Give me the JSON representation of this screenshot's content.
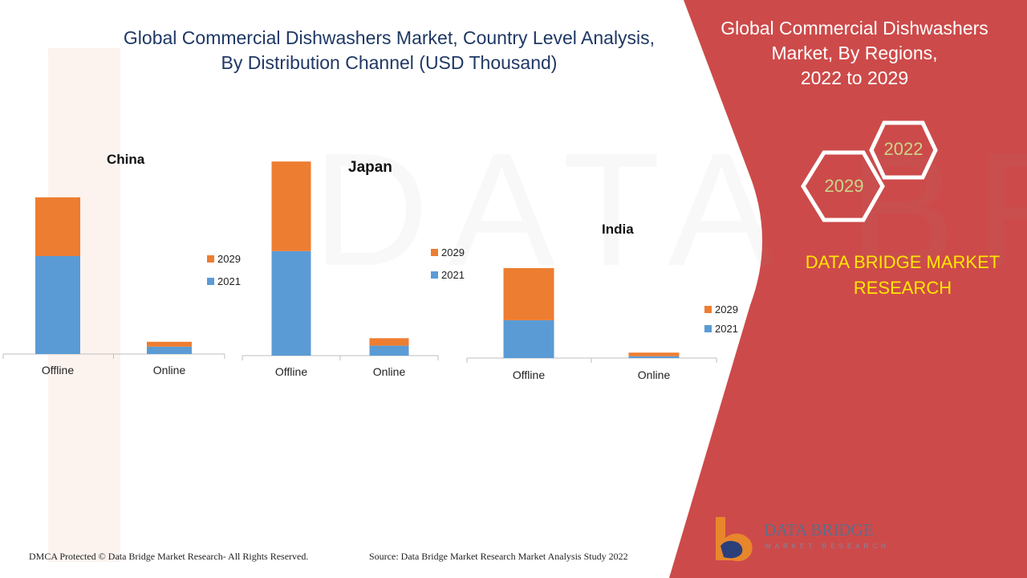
{
  "title_line1": "Global Commercial Dishwashers Market, Country Level Analysis,",
  "title_line2": "By Distribution Channel (USD Thousand)",
  "panel": {
    "title_line1": "Global Commercial Dishwashers",
    "title_line2": "Market, By Regions,",
    "title_line3": "2022 to 2029",
    "hex_year_1": "2022",
    "hex_year_2": "2029",
    "brand_line1": "DATA BRIDGE MARKET",
    "brand_line2": "RESEARCH"
  },
  "footer": {
    "copyright": "DMCA Protected © Data Bridge Market Research- All Rights Reserved.",
    "source": "Source: Data Bridge Market Research Market Analysis Study 2022"
  },
  "logo": {
    "name": "DATA BRIDGE",
    "subtitle": "MARKET RESEARCH"
  },
  "colors": {
    "series_2021": "#5b9bd5",
    "series_2029": "#ed7d31",
    "panel_red": "#cd4a4a",
    "brand_yellow": "#ffe600",
    "title_navy": "#1f3864"
  },
  "chart_data": [
    {
      "type": "bar",
      "stacked": true,
      "title": "China",
      "categories": [
        "Offline",
        "Online"
      ],
      "series": [
        {
          "name": "2021",
          "values": [
            40,
            3
          ]
        },
        {
          "name": "2029",
          "values": [
            24,
            2
          ]
        }
      ],
      "legend": [
        "2029",
        "2021"
      ],
      "ylim": [
        0,
        80
      ]
    },
    {
      "type": "bar",
      "stacked": true,
      "title": "Japan",
      "categories": [
        "Offline",
        "Online"
      ],
      "series": [
        {
          "name": "2021",
          "values": [
            42,
            4
          ]
        },
        {
          "name": "2029",
          "values": [
            36,
            3
          ]
        }
      ],
      "legend": [
        "2029",
        "2021"
      ],
      "ylim": [
        0,
        80
      ]
    },
    {
      "type": "bar",
      "stacked": true,
      "title": "India",
      "categories": [
        "Offline",
        "Online"
      ],
      "series": [
        {
          "name": "2021",
          "values": [
            21,
            1
          ]
        },
        {
          "name": "2029",
          "values": [
            29,
            2
          ]
        }
      ],
      "legend": [
        "2029",
        "2021"
      ],
      "ylim": [
        0,
        80
      ]
    }
  ]
}
